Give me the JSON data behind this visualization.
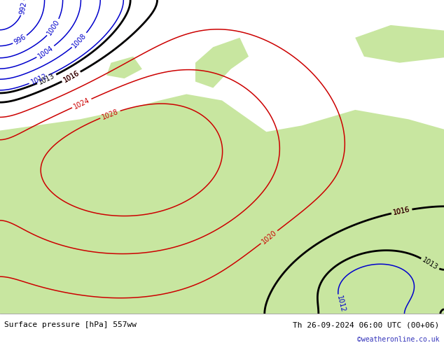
{
  "title_left": "Surface pressure [hPa] 557ww",
  "title_right": "Th 26-09-2024 06:00 UTC (00+06)",
  "credit": "©weatheronline.co.uk",
  "bg_sea_color": "#d0d0d0",
  "land_color": "#c8e6a0",
  "fig_width": 6.34,
  "fig_height": 4.9,
  "dpi": 100,
  "footer_fontsize": 8,
  "credit_color": "#3333bb",
  "label_fontsize": 7
}
